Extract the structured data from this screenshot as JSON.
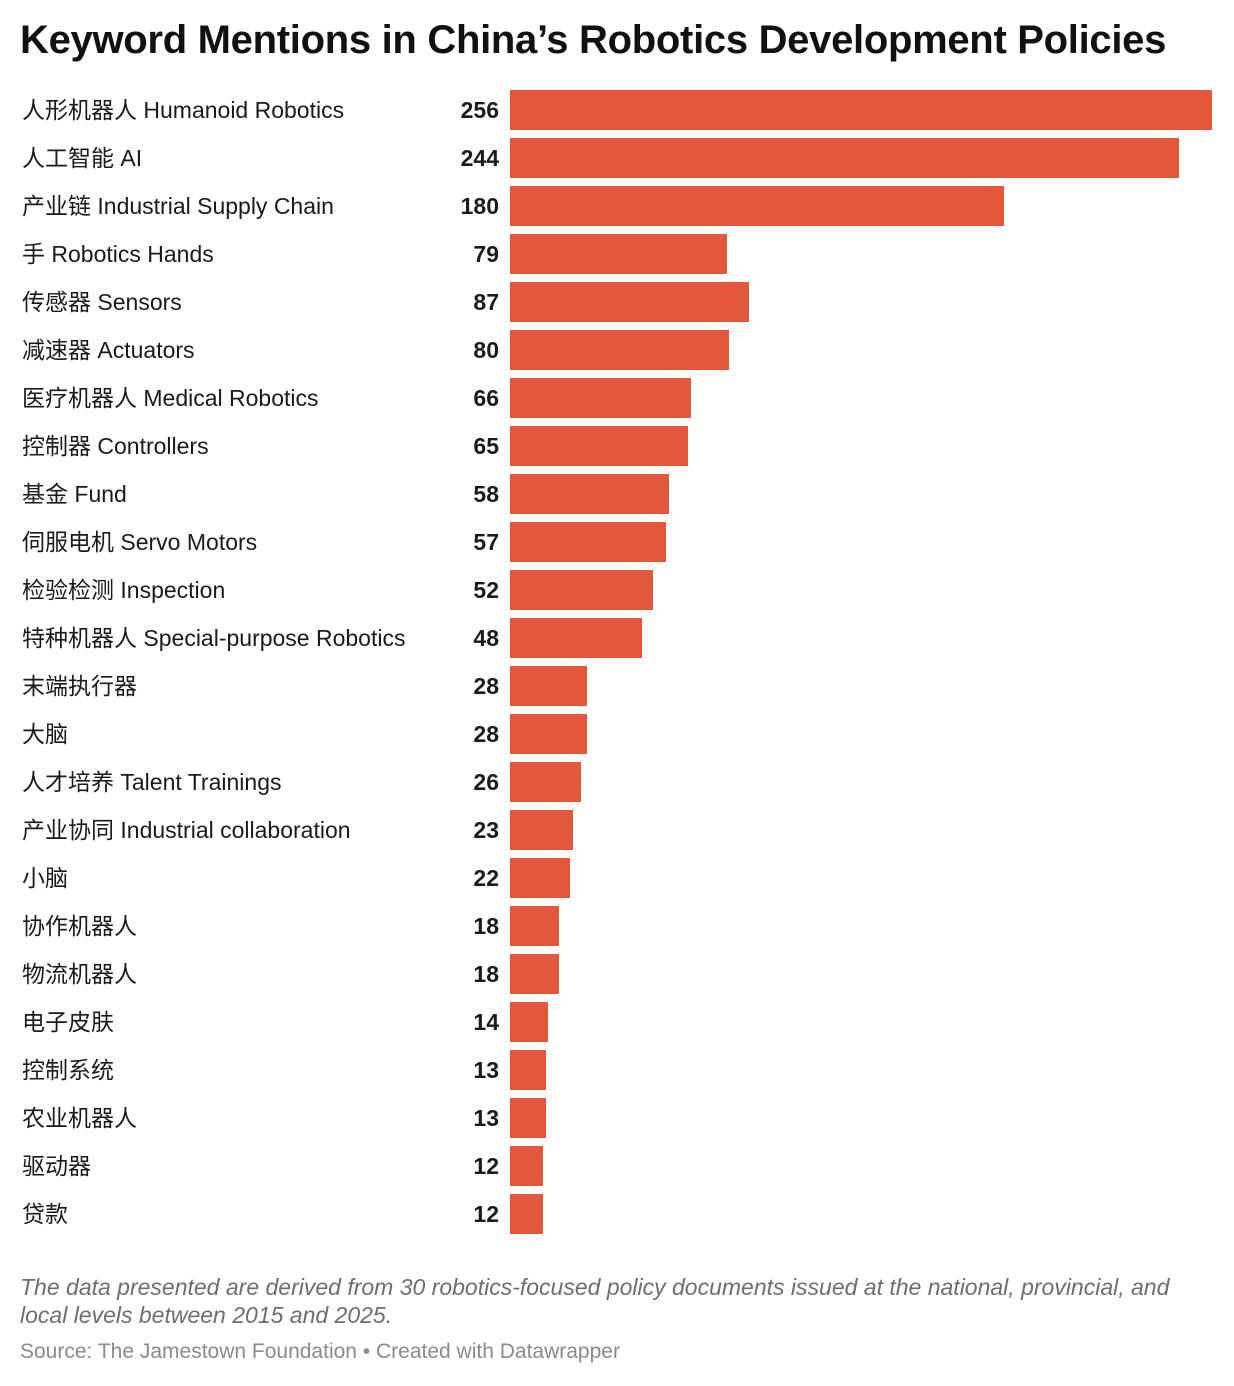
{
  "title": "Keyword Mentions in China’s Robotics Development Policies",
  "note": "The data presented are derived from 30 robotics-focused policy documents issued at the national, provincial, and local levels between 2015 and 2025.",
  "source": "Source: The Jamestown Foundation • Created with Datawrapper",
  "colors": {
    "bar": "#e3583b",
    "label": "#1a1a1a",
    "value": "#1a1a1a"
  },
  "chart_data": {
    "type": "bar",
    "orientation": "horizontal",
    "title": "Keyword Mentions in China’s Robotics Development Policies",
    "xlabel": "",
    "ylabel": "",
    "grid": false,
    "xlim": [
      0,
      256
    ],
    "categories": [
      "人形机器人 Humanoid Robotics",
      "人工智能 AI",
      "产业链 Industrial Supply Chain",
      "手 Robotics Hands",
      "传感器 Sensors",
      "减速器 Actuators",
      "医疗机器人 Medical Robotics",
      "控制器 Controllers",
      "基金 Fund",
      "伺服电机 Servo Motors",
      "检验检测 Inspection",
      "特种机器人 Special-purpose Robotics",
      "末端执行器",
      "大脑",
      "人才培养 Talent Trainings",
      "产业协同 Industrial collaboration",
      "小脑",
      "协作机器人",
      "物流机器人",
      "电子皮肤",
      "控制系统",
      "农业机器人",
      "驱动器",
      "贷款"
    ],
    "values": [
      256,
      244,
      180,
      79,
      87,
      80,
      66,
      65,
      58,
      57,
      52,
      48,
      28,
      28,
      26,
      23,
      22,
      18,
      18,
      14,
      13,
      13,
      12,
      12
    ]
  }
}
